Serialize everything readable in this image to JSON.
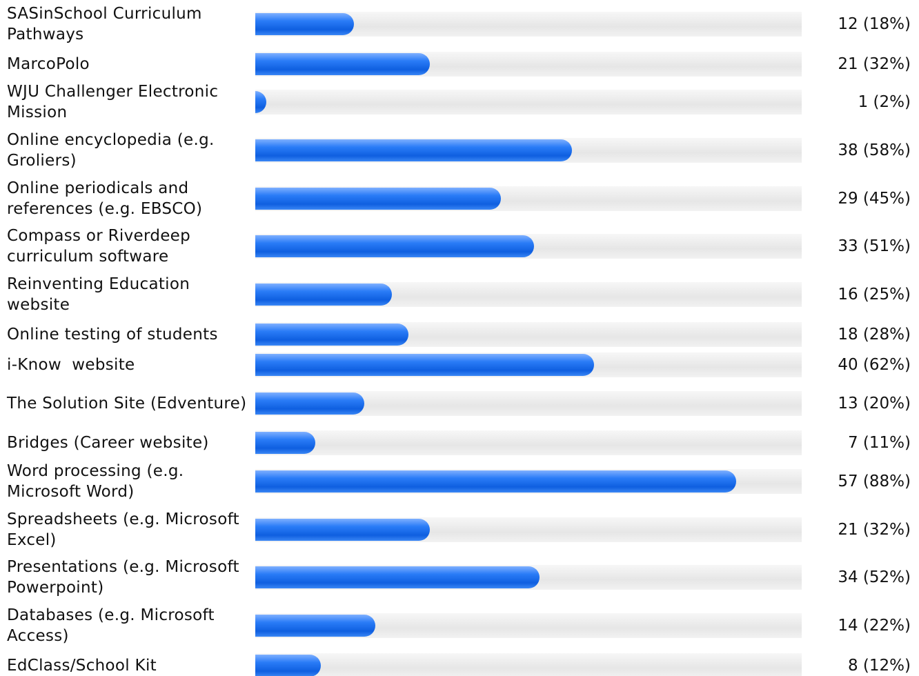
{
  "chart_data": {
    "type": "bar",
    "orientation": "horizontal",
    "color": "#1f6fe8",
    "xlim": [
      0,
      100
    ],
    "categories": [
      "SASinSchool Curriculum Pathways",
      "MarcoPolo",
      "WJU Challenger Electronic Mission",
      "Online encyclopedia (e.g. Groliers)",
      "Online periodicals and references (e.g. EBSCO)",
      "Compass or Riverdeep curriculum software",
      "Reinventing Education website",
      "Online testing of students",
      "i-Know  website",
      "The Solution Site (Edventure)",
      "Bridges (Career website)",
      "Word processing (e.g. Microsoft Word)",
      "Spreadsheets (e.g. Microsoft Excel)",
      "Presentations (e.g. Microsoft Powerpoint)",
      "Databases (e.g. Microsoft Access)",
      "EdClass/School Kit"
    ],
    "values": [
      18,
      32,
      2,
      58,
      45,
      51,
      25,
      28,
      62,
      20,
      11,
      88,
      32,
      52,
      22,
      12
    ],
    "value_labels": [
      "12 (18%)",
      "21 (32%)",
      "1 (2%)",
      "38 (58%)",
      "29 (45%)",
      "33 (51%)",
      "16 (25%)",
      "18 (28%)",
      "40 (62%)",
      "13 (20%)",
      "7 (11%)",
      "57 (88%)",
      "21 (32%)",
      "34 (52%)",
      "14 (22%)",
      "8 (12%)"
    ]
  }
}
